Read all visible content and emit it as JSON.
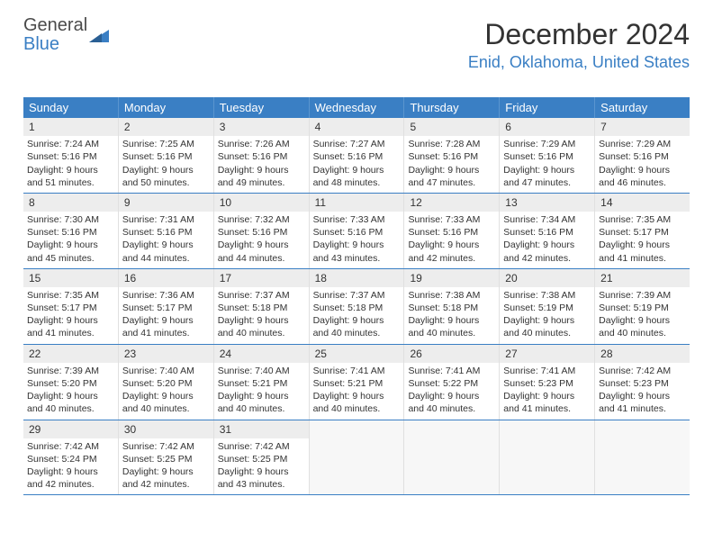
{
  "brand": {
    "text1": "General",
    "text2": "Blue"
  },
  "title": "December 2024",
  "location": "Enid, Oklahoma, United States",
  "colors": {
    "accent": "#3a7fc4",
    "header_bg": "#3a7fc4",
    "daynum_bg": "#ededed",
    "text": "#333333",
    "logo_gray": "#4a4a4a"
  },
  "daynames": [
    "Sunday",
    "Monday",
    "Tuesday",
    "Wednesday",
    "Thursday",
    "Friday",
    "Saturday"
  ],
  "weeks": [
    [
      {
        "n": "1",
        "sunrise": "7:24 AM",
        "sunset": "5:16 PM",
        "daylight": "9 hours and 51 minutes."
      },
      {
        "n": "2",
        "sunrise": "7:25 AM",
        "sunset": "5:16 PM",
        "daylight": "9 hours and 50 minutes."
      },
      {
        "n": "3",
        "sunrise": "7:26 AM",
        "sunset": "5:16 PM",
        "daylight": "9 hours and 49 minutes."
      },
      {
        "n": "4",
        "sunrise": "7:27 AM",
        "sunset": "5:16 PM",
        "daylight": "9 hours and 48 minutes."
      },
      {
        "n": "5",
        "sunrise": "7:28 AM",
        "sunset": "5:16 PM",
        "daylight": "9 hours and 47 minutes."
      },
      {
        "n": "6",
        "sunrise": "7:29 AM",
        "sunset": "5:16 PM",
        "daylight": "9 hours and 47 minutes."
      },
      {
        "n": "7",
        "sunrise": "7:29 AM",
        "sunset": "5:16 PM",
        "daylight": "9 hours and 46 minutes."
      }
    ],
    [
      {
        "n": "8",
        "sunrise": "7:30 AM",
        "sunset": "5:16 PM",
        "daylight": "9 hours and 45 minutes."
      },
      {
        "n": "9",
        "sunrise": "7:31 AM",
        "sunset": "5:16 PM",
        "daylight": "9 hours and 44 minutes."
      },
      {
        "n": "10",
        "sunrise": "7:32 AM",
        "sunset": "5:16 PM",
        "daylight": "9 hours and 44 minutes."
      },
      {
        "n": "11",
        "sunrise": "7:33 AM",
        "sunset": "5:16 PM",
        "daylight": "9 hours and 43 minutes."
      },
      {
        "n": "12",
        "sunrise": "7:33 AM",
        "sunset": "5:16 PM",
        "daylight": "9 hours and 42 minutes."
      },
      {
        "n": "13",
        "sunrise": "7:34 AM",
        "sunset": "5:16 PM",
        "daylight": "9 hours and 42 minutes."
      },
      {
        "n": "14",
        "sunrise": "7:35 AM",
        "sunset": "5:17 PM",
        "daylight": "9 hours and 41 minutes."
      }
    ],
    [
      {
        "n": "15",
        "sunrise": "7:35 AM",
        "sunset": "5:17 PM",
        "daylight": "9 hours and 41 minutes."
      },
      {
        "n": "16",
        "sunrise": "7:36 AM",
        "sunset": "5:17 PM",
        "daylight": "9 hours and 41 minutes."
      },
      {
        "n": "17",
        "sunrise": "7:37 AM",
        "sunset": "5:18 PM",
        "daylight": "9 hours and 40 minutes."
      },
      {
        "n": "18",
        "sunrise": "7:37 AM",
        "sunset": "5:18 PM",
        "daylight": "9 hours and 40 minutes."
      },
      {
        "n": "19",
        "sunrise": "7:38 AM",
        "sunset": "5:18 PM",
        "daylight": "9 hours and 40 minutes."
      },
      {
        "n": "20",
        "sunrise": "7:38 AM",
        "sunset": "5:19 PM",
        "daylight": "9 hours and 40 minutes."
      },
      {
        "n": "21",
        "sunrise": "7:39 AM",
        "sunset": "5:19 PM",
        "daylight": "9 hours and 40 minutes."
      }
    ],
    [
      {
        "n": "22",
        "sunrise": "7:39 AM",
        "sunset": "5:20 PM",
        "daylight": "9 hours and 40 minutes."
      },
      {
        "n": "23",
        "sunrise": "7:40 AM",
        "sunset": "5:20 PM",
        "daylight": "9 hours and 40 minutes."
      },
      {
        "n": "24",
        "sunrise": "7:40 AM",
        "sunset": "5:21 PM",
        "daylight": "9 hours and 40 minutes."
      },
      {
        "n": "25",
        "sunrise": "7:41 AM",
        "sunset": "5:21 PM",
        "daylight": "9 hours and 40 minutes."
      },
      {
        "n": "26",
        "sunrise": "7:41 AM",
        "sunset": "5:22 PM",
        "daylight": "9 hours and 40 minutes."
      },
      {
        "n": "27",
        "sunrise": "7:41 AM",
        "sunset": "5:23 PM",
        "daylight": "9 hours and 41 minutes."
      },
      {
        "n": "28",
        "sunrise": "7:42 AM",
        "sunset": "5:23 PM",
        "daylight": "9 hours and 41 minutes."
      }
    ],
    [
      {
        "n": "29",
        "sunrise": "7:42 AM",
        "sunset": "5:24 PM",
        "daylight": "9 hours and 42 minutes."
      },
      {
        "n": "30",
        "sunrise": "7:42 AM",
        "sunset": "5:25 PM",
        "daylight": "9 hours and 42 minutes."
      },
      {
        "n": "31",
        "sunrise": "7:42 AM",
        "sunset": "5:25 PM",
        "daylight": "9 hours and 43 minutes."
      },
      null,
      null,
      null,
      null
    ]
  ]
}
